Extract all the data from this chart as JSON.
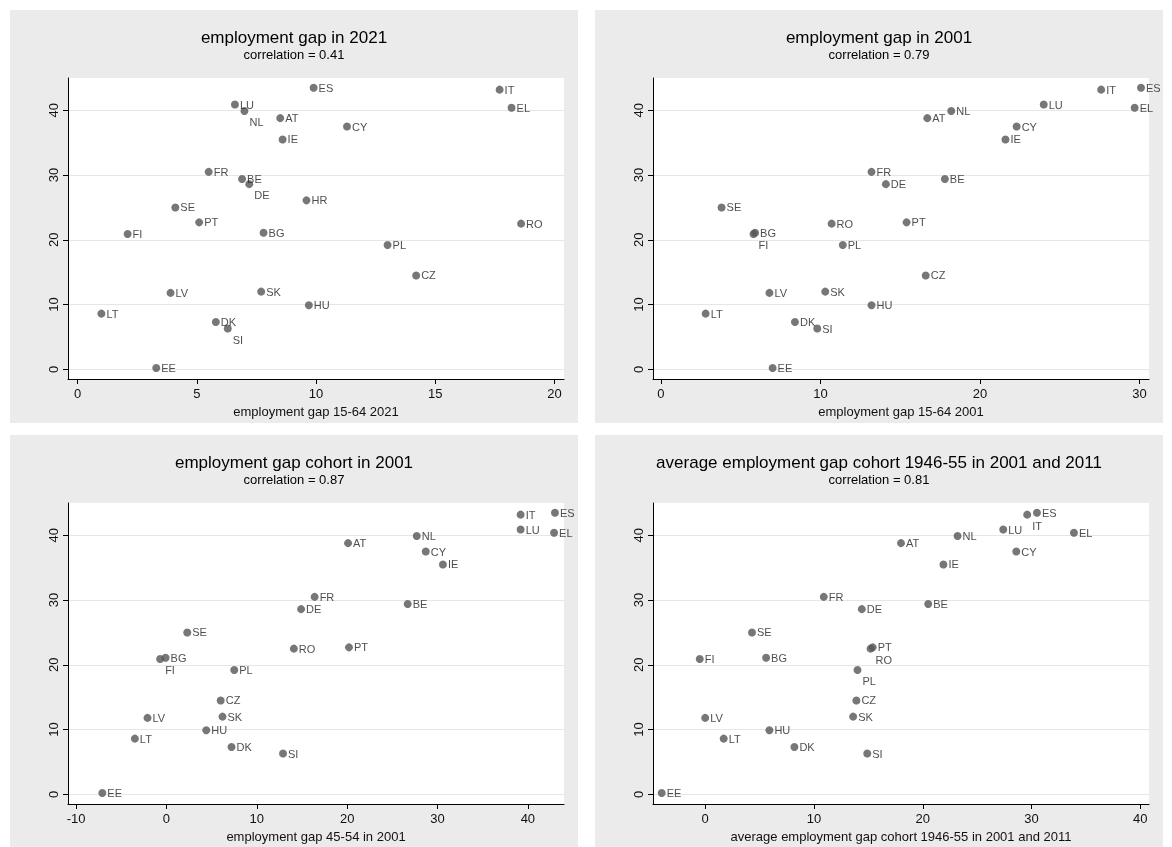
{
  "chart_data": [
    {
      "type": "scatter",
      "title": "employment gap in 2021",
      "subtitle": "correlation = 0.41",
      "xlabel": "employment gap 15-64 2021",
      "color": "#555555",
      "marker": "circle",
      "grid": "y",
      "xlim": [
        -0.4,
        20.4
      ],
      "ylim": [
        -1.5,
        45
      ],
      "xticks": [
        0,
        5,
        10,
        15,
        20
      ],
      "yticks": [
        0,
        10,
        20,
        30,
        40
      ],
      "x": [
        9.9,
        17.7,
        18.2,
        6.6,
        7.0,
        8.5,
        11.3,
        8.6,
        5.5,
        6.9,
        7.2,
        9.6,
        4.1,
        5.1,
        18.6,
        7.8,
        2.1,
        13.0,
        14.2,
        3.9,
        7.7,
        9.7,
        1.0,
        5.8,
        6.3,
        3.3
      ],
      "values": [
        43.5,
        43.2,
        40.4,
        40.9,
        39.9,
        38.8,
        37.5,
        35.5,
        30.5,
        29.4,
        28.6,
        26.1,
        25.0,
        22.7,
        22.5,
        21.1,
        20.9,
        19.2,
        14.5,
        11.8,
        12.0,
        9.9,
        8.6,
        7.3,
        6.3,
        0.2
      ],
      "annotations": [
        {
          "text": "ES",
          "x": 9.9,
          "y": 43.5
        },
        {
          "text": "IT",
          "x": 17.7,
          "y": 43.2
        },
        {
          "text": "EL",
          "x": 18.2,
          "y": 40.4
        },
        {
          "text": "LU",
          "x": 6.6,
          "y": 40.9
        },
        {
          "text": "NL",
          "x": 7.0,
          "y": 39.9
        },
        {
          "text": "AT",
          "x": 8.5,
          "y": 38.8
        },
        {
          "text": "CY",
          "x": 11.3,
          "y": 37.5
        },
        {
          "text": "IE",
          "x": 8.6,
          "y": 35.5
        },
        {
          "text": "FR",
          "x": 5.5,
          "y": 30.5
        },
        {
          "text": "BE",
          "x": 6.9,
          "y": 29.4
        },
        {
          "text": "DE",
          "x": 7.2,
          "y": 28.6
        },
        {
          "text": "HR",
          "x": 9.6,
          "y": 26.1
        },
        {
          "text": "SE",
          "x": 4.1,
          "y": 25.0
        },
        {
          "text": "PT",
          "x": 5.1,
          "y": 22.7
        },
        {
          "text": "RO",
          "x": 18.6,
          "y": 22.5
        },
        {
          "text": "BG",
          "x": 7.8,
          "y": 21.1
        },
        {
          "text": "FI",
          "x": 2.1,
          "y": 20.9
        },
        {
          "text": "PL",
          "x": 13.0,
          "y": 19.2
        },
        {
          "text": "CZ",
          "x": 14.2,
          "y": 14.5
        },
        {
          "text": "LV",
          "x": 3.9,
          "y": 11.8
        },
        {
          "text": "SK",
          "x": 7.7,
          "y": 12.0
        },
        {
          "text": "HU",
          "x": 9.7,
          "y": 9.9
        },
        {
          "text": "LT",
          "x": 1.0,
          "y": 8.6
        },
        {
          "text": "DK",
          "x": 5.8,
          "y": 7.3
        },
        {
          "text": "SI",
          "x": 6.3,
          "y": 6.3
        },
        {
          "text": "EE",
          "x": 3.3,
          "y": 0.2
        }
      ]
    },
    {
      "type": "scatter",
      "title": "employment gap in 2001",
      "subtitle": "correlation = 0.79",
      "xlabel": "employment gap 15-64 2001",
      "color": "#555555",
      "marker": "circle",
      "grid": "y",
      "xlim": [
        -0.5,
        30.6
      ],
      "ylim": [
        -1.5,
        45
      ],
      "xticks": [
        0,
        10,
        20,
        30
      ],
      "yticks": [
        0,
        10,
        20,
        30,
        40
      ],
      "x": [
        30.1,
        27.6,
        29.7,
        24.0,
        18.2,
        16.7,
        22.3,
        21.6,
        13.2,
        17.8,
        14.1,
        3.8,
        15.4,
        10.7,
        5.9,
        5.8,
        11.4,
        16.6,
        6.8,
        10.3,
        13.2,
        2.8,
        8.4,
        9.8,
        7.0
      ],
      "values": [
        43.5,
        43.2,
        40.4,
        40.9,
        39.9,
        38.8,
        37.5,
        35.5,
        30.5,
        29.4,
        28.6,
        25.0,
        22.7,
        22.5,
        21.1,
        20.9,
        19.2,
        14.5,
        11.8,
        12.0,
        9.9,
        8.6,
        7.3,
        6.3,
        0.2
      ],
      "annotations": [
        {
          "text": "ES",
          "x": 30.1,
          "y": 43.5
        },
        {
          "text": "IT",
          "x": 27.6,
          "y": 43.2
        },
        {
          "text": "EL",
          "x": 29.7,
          "y": 40.4
        },
        {
          "text": "LU",
          "x": 24.0,
          "y": 40.9
        },
        {
          "text": "NL",
          "x": 18.2,
          "y": 39.9
        },
        {
          "text": "AT",
          "x": 16.7,
          "y": 38.8
        },
        {
          "text": "CY",
          "x": 22.3,
          "y": 37.5
        },
        {
          "text": "IE",
          "x": 21.6,
          "y": 35.5
        },
        {
          "text": "FR",
          "x": 13.2,
          "y": 30.5
        },
        {
          "text": "BE",
          "x": 17.8,
          "y": 29.4
        },
        {
          "text": "DE",
          "x": 14.1,
          "y": 28.6
        },
        {
          "text": "SE",
          "x": 3.8,
          "y": 25.0
        },
        {
          "text": "PT",
          "x": 15.4,
          "y": 22.7
        },
        {
          "text": "RO",
          "x": 10.7,
          "y": 22.5
        },
        {
          "text": "BG",
          "x": 5.9,
          "y": 21.1
        },
        {
          "text": "FI",
          "x": 5.8,
          "y": 20.9
        },
        {
          "text": "PL",
          "x": 11.4,
          "y": 19.2
        },
        {
          "text": "CZ",
          "x": 16.6,
          "y": 14.5
        },
        {
          "text": "LV",
          "x": 6.8,
          "y": 11.8
        },
        {
          "text": "SK",
          "x": 10.3,
          "y": 12.0
        },
        {
          "text": "HU",
          "x": 13.2,
          "y": 9.9
        },
        {
          "text": "LT",
          "x": 2.8,
          "y": 8.6
        },
        {
          "text": "DK",
          "x": 8.4,
          "y": 7.3
        },
        {
          "text": "SI",
          "x": 9.8,
          "y": 6.3
        },
        {
          "text": "EE",
          "x": 7.0,
          "y": 0.2
        }
      ]
    },
    {
      "type": "scatter",
      "title": "employment gap cohort in 2001",
      "subtitle": "correlation = 0.87",
      "xlabel": "employment gap 45-54 in 2001",
      "color": "#555555",
      "marker": "circle",
      "grid": "y",
      "xlim": [
        -10.9,
        44
      ],
      "ylim": [
        -1.5,
        45
      ],
      "xticks": [
        -10,
        0,
        10,
        20,
        30,
        40
      ],
      "yticks": [
        0,
        10,
        20,
        30,
        40
      ],
      "x": [
        43.0,
        39.2,
        42.9,
        39.2,
        27.7,
        20.1,
        28.7,
        30.6,
        16.4,
        26.7,
        14.9,
        2.3,
        20.2,
        14.1,
        -0.1,
        -0.7,
        7.5,
        6.0,
        -2.1,
        6.2,
        4.4,
        -3.5,
        7.2,
        12.9,
        -7.1
      ],
      "values": [
        43.5,
        43.2,
        40.4,
        40.9,
        39.9,
        38.8,
        37.5,
        35.5,
        30.5,
        29.4,
        28.6,
        25.0,
        22.7,
        22.5,
        21.1,
        20.9,
        19.2,
        14.5,
        11.8,
        12.0,
        9.9,
        8.6,
        7.3,
        6.3,
        0.2
      ],
      "annotations": [
        {
          "text": "ES",
          "x": 43.0,
          "y": 43.5
        },
        {
          "text": "IT",
          "x": 39.2,
          "y": 43.2
        },
        {
          "text": "EL",
          "x": 42.9,
          "y": 40.4
        },
        {
          "text": "LU",
          "x": 39.2,
          "y": 40.9
        },
        {
          "text": "NL",
          "x": 27.7,
          "y": 39.9
        },
        {
          "text": "AT",
          "x": 20.1,
          "y": 38.8
        },
        {
          "text": "CY",
          "x": 28.7,
          "y": 37.5
        },
        {
          "text": "IE",
          "x": 30.6,
          "y": 35.5
        },
        {
          "text": "FR",
          "x": 16.4,
          "y": 30.5
        },
        {
          "text": "BE",
          "x": 26.7,
          "y": 29.4
        },
        {
          "text": "DE",
          "x": 14.9,
          "y": 28.6
        },
        {
          "text": "SE",
          "x": 2.3,
          "y": 25.0
        },
        {
          "text": "PT",
          "x": 20.2,
          "y": 22.7
        },
        {
          "text": "RO",
          "x": 14.1,
          "y": 22.5
        },
        {
          "text": "BG",
          "x": -0.1,
          "y": 21.1
        },
        {
          "text": "FI",
          "x": -0.7,
          "y": 20.9
        },
        {
          "text": "PL",
          "x": 7.5,
          "y": 19.2
        },
        {
          "text": "CZ",
          "x": 6.0,
          "y": 14.5
        },
        {
          "text": "LV",
          "x": -2.1,
          "y": 11.8
        },
        {
          "text": "SK",
          "x": 6.2,
          "y": 12.0
        },
        {
          "text": "HU",
          "x": 4.4,
          "y": 9.9
        },
        {
          "text": "LT",
          "x": -3.5,
          "y": 8.6
        },
        {
          "text": "DK",
          "x": 7.2,
          "y": 7.3
        },
        {
          "text": "SI",
          "x": 12.9,
          "y": 6.3
        },
        {
          "text": "EE",
          "x": -7.1,
          "y": 0.2
        }
      ]
    },
    {
      "type": "scatter",
      "title": "average employment gap cohort 1946-55 in 2001 and 2011",
      "subtitle": "correlation = 0.81",
      "xlabel": "average employment gap cohort 1946-55 in 2001 and 2011",
      "color": "#555555",
      "marker": "circle",
      "grid": "y",
      "xlim": [
        -4.8,
        40.8
      ],
      "ylim": [
        -1.5,
        45
      ],
      "xticks": [
        0,
        10,
        20,
        30,
        40
      ],
      "yticks": [
        0,
        10,
        20,
        30,
        40
      ],
      "x": [
        30.5,
        29.6,
        33.9,
        27.4,
        23.2,
        18.0,
        28.6,
        21.9,
        10.9,
        20.5,
        14.4,
        4.3,
        15.4,
        15.2,
        5.6,
        -0.5,
        14.0,
        13.9,
        0.0,
        13.6,
        5.9,
        1.7,
        8.2,
        14.9,
        -4.0
      ],
      "values": [
        43.5,
        43.2,
        40.4,
        40.9,
        39.9,
        38.8,
        37.5,
        35.5,
        30.5,
        29.4,
        28.6,
        25.0,
        22.7,
        22.5,
        21.1,
        20.9,
        19.2,
        14.5,
        11.8,
        12.0,
        9.9,
        8.6,
        7.3,
        6.3,
        0.2
      ],
      "annotations": [
        {
          "text": "ES",
          "x": 30.5,
          "y": 43.5
        },
        {
          "text": "IT",
          "x": 29.6,
          "y": 43.2
        },
        {
          "text": "EL",
          "x": 33.9,
          "y": 40.4
        },
        {
          "text": "LU",
          "x": 27.4,
          "y": 40.9
        },
        {
          "text": "NL",
          "x": 23.2,
          "y": 39.9
        },
        {
          "text": "AT",
          "x": 18.0,
          "y": 38.8
        },
        {
          "text": "CY",
          "x": 28.6,
          "y": 37.5
        },
        {
          "text": "IE",
          "x": 21.9,
          "y": 35.5
        },
        {
          "text": "FR",
          "x": 10.9,
          "y": 30.5
        },
        {
          "text": "BE",
          "x": 20.5,
          "y": 29.4
        },
        {
          "text": "DE",
          "x": 14.4,
          "y": 28.6
        },
        {
          "text": "SE",
          "x": 4.3,
          "y": 25.0
        },
        {
          "text": "PT",
          "x": 15.4,
          "y": 22.7
        },
        {
          "text": "RO",
          "x": 15.2,
          "y": 22.5
        },
        {
          "text": "BG",
          "x": 5.6,
          "y": 21.1
        },
        {
          "text": "FI",
          "x": -0.5,
          "y": 20.9
        },
        {
          "text": "PL",
          "x": 14.0,
          "y": 19.2
        },
        {
          "text": "CZ",
          "x": 13.9,
          "y": 14.5
        },
        {
          "text": "LV",
          "x": 0.0,
          "y": 11.8
        },
        {
          "text": "SK",
          "x": 13.6,
          "y": 12.0
        },
        {
          "text": "HU",
          "x": 5.9,
          "y": 9.9
        },
        {
          "text": "LT",
          "x": 1.7,
          "y": 8.6
        },
        {
          "text": "DK",
          "x": 8.2,
          "y": 7.3
        },
        {
          "text": "SI",
          "x": 14.9,
          "y": 6.3
        },
        {
          "text": "EE",
          "x": -4.0,
          "y": 0.2
        }
      ]
    }
  ]
}
